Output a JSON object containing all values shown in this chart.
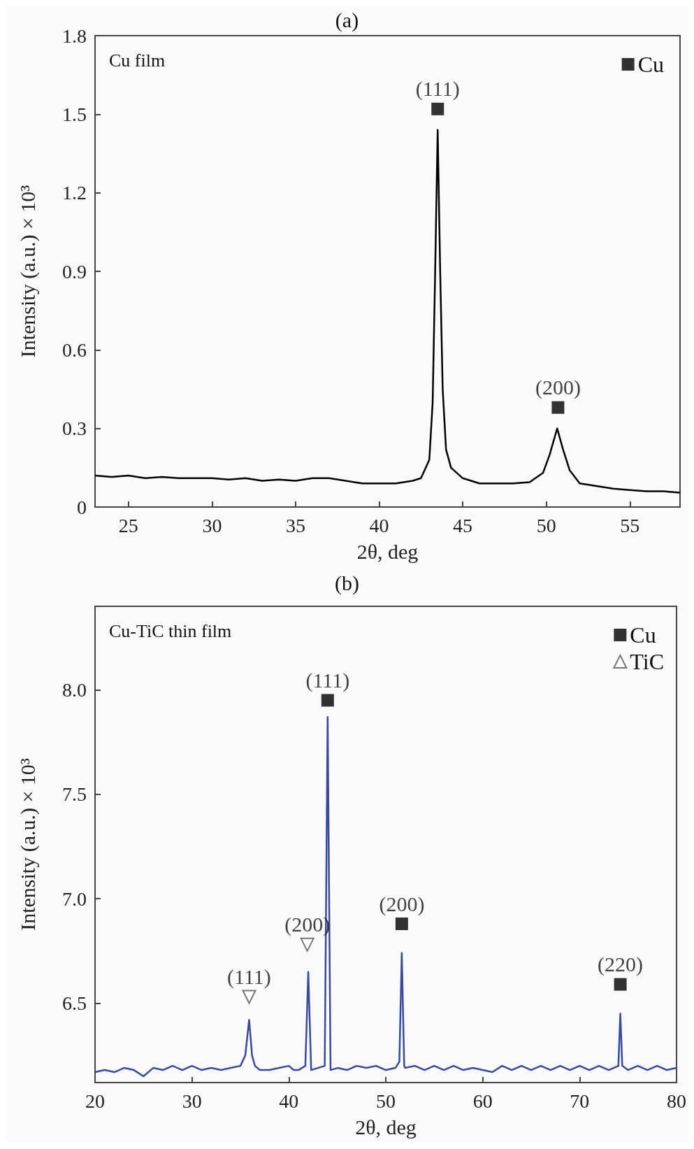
{
  "chart_data": [
    {
      "type": "line",
      "title": "(a)",
      "xlabel": "2θ, deg",
      "ylabel": "Intensity (a.u.) × 10³",
      "xlim": [
        23,
        58
      ],
      "ylim": [
        0,
        1.8
      ],
      "xticks": [
        25,
        30,
        35,
        40,
        45,
        50,
        55
      ],
      "yticks": [
        0,
        0.3,
        0.6,
        0.9,
        1.2,
        1.5,
        1.8
      ],
      "grid": false,
      "legend": "top right",
      "marker": "none",
      "line_style": "solid",
      "annotations": [
        "Cu film",
        {
          "text": "(111)",
          "x": 43.5,
          "y": 1.52
        },
        {
          "text": "(200)",
          "x": 50.7,
          "y": 0.38
        }
      ],
      "series": [
        {
          "color": "#000000",
          "x": [
            23,
            24,
            25,
            26,
            27,
            28,
            29,
            30,
            31,
            32,
            33,
            34,
            35,
            36,
            37,
            38,
            39,
            40,
            41,
            42,
            42.5,
            43,
            43.2,
            43.35,
            43.5,
            43.65,
            43.8,
            44,
            44.3,
            45,
            46,
            47,
            48,
            49,
            49.8,
            50.2,
            50.65,
            51,
            51.4,
            52,
            53,
            54,
            55,
            56,
            57,
            58
          ],
          "values": [
            0.12,
            0.115,
            0.12,
            0.11,
            0.115,
            0.11,
            0.11,
            0.11,
            0.105,
            0.11,
            0.1,
            0.105,
            0.1,
            0.11,
            0.11,
            0.1,
            0.09,
            0.09,
            0.09,
            0.1,
            0.11,
            0.18,
            0.4,
            0.9,
            1.44,
            0.9,
            0.45,
            0.22,
            0.15,
            0.11,
            0.09,
            0.09,
            0.09,
            0.095,
            0.13,
            0.2,
            0.3,
            0.22,
            0.14,
            0.09,
            0.08,
            0.07,
            0.065,
            0.06,
            0.06,
            0.055
          ]
        },
        {
          "type": "scatter",
          "name": "Cu",
          "color": "#000000",
          "marker": "square",
          "x": [
            43.5,
            50.7
          ],
          "values": [
            1.52,
            0.38
          ]
        }
      ]
    },
    {
      "type": "line",
      "title": "(b)",
      "xlabel": "2θ, deg",
      "ylabel": "Intensity (a.u.) × 10³",
      "xlim": [
        20,
        80
      ],
      "ylim": [
        6.12,
        8.4
      ],
      "xticks": [
        20,
        30,
        40,
        50,
        60,
        70,
        80
      ],
      "yticks": [
        6.5,
        {
          "value": 7,
          "label": "7.0"
        },
        7.5,
        {
          "value": 8,
          "label": "8.0"
        }
      ],
      "grid": false,
      "legend": "top right",
      "marker": "none",
      "line_style": "solid",
      "annotations": [
        "Cu-TiC thin film",
        {
          "text": "(111)",
          "x": 35.9,
          "y": 6.53
        },
        {
          "text": "(200)",
          "x": 41.9,
          "y": 6.78
        },
        {
          "text": "(111)",
          "x": 44,
          "y": 7.95
        },
        {
          "text": "(200)",
          "x": 51.65,
          "y": 6.88
        },
        {
          "text": "(220)",
          "x": 74.2,
          "y": 6.59
        }
      ],
      "series": [
        {
          "color": "#3949a0",
          "x": [
            20,
            21,
            22,
            23,
            24,
            25,
            26,
            27,
            28,
            29,
            30,
            31,
            32,
            33,
            34,
            35,
            35.5,
            35.9,
            36.2,
            36.5,
            37,
            38,
            39,
            40,
            40.5,
            41,
            41.7,
            42,
            42.3,
            43,
            43.7,
            44,
            44.3,
            45,
            46,
            47,
            48,
            49,
            50,
            51,
            51.4,
            51.65,
            51.9,
            52,
            53,
            54,
            55,
            56,
            57,
            58,
            59,
            60,
            61,
            62,
            63,
            64,
            65,
            66,
            67,
            68,
            69,
            70,
            71,
            72,
            73,
            74,
            74.2,
            74.4,
            75,
            76,
            77,
            78,
            79,
            80
          ],
          "values": [
            6.17,
            6.18,
            6.17,
            6.19,
            6.18,
            6.15,
            6.19,
            6.18,
            6.2,
            6.18,
            6.2,
            6.18,
            6.19,
            6.18,
            6.19,
            6.2,
            6.25,
            6.42,
            6.25,
            6.2,
            6.18,
            6.18,
            6.19,
            6.2,
            6.18,
            6.18,
            6.2,
            6.65,
            6.18,
            6.19,
            6.2,
            7.87,
            6.18,
            6.19,
            6.18,
            6.2,
            6.19,
            6.2,
            6.18,
            6.19,
            6.22,
            6.74,
            6.2,
            6.19,
            6.2,
            6.18,
            6.2,
            6.18,
            6.2,
            6.18,
            6.19,
            6.18,
            6.17,
            6.2,
            6.18,
            6.2,
            6.18,
            6.2,
            6.18,
            6.2,
            6.18,
            6.2,
            6.18,
            6.2,
            6.18,
            6.2,
            6.45,
            6.2,
            6.18,
            6.2,
            6.18,
            6.2,
            6.18,
            6.19
          ]
        },
        {
          "type": "scatter",
          "name": "Cu",
          "color": "#000000",
          "marker": "square",
          "x": [
            44,
            51.65,
            74.2
          ],
          "values": [
            7.95,
            6.88,
            6.59
          ]
        },
        {
          "type": "scatter",
          "name": "TiC",
          "color": "#555555",
          "marker": "triangle",
          "x": [
            35.9,
            41.9
          ],
          "values": [
            6.53,
            6.78
          ]
        }
      ]
    }
  ]
}
